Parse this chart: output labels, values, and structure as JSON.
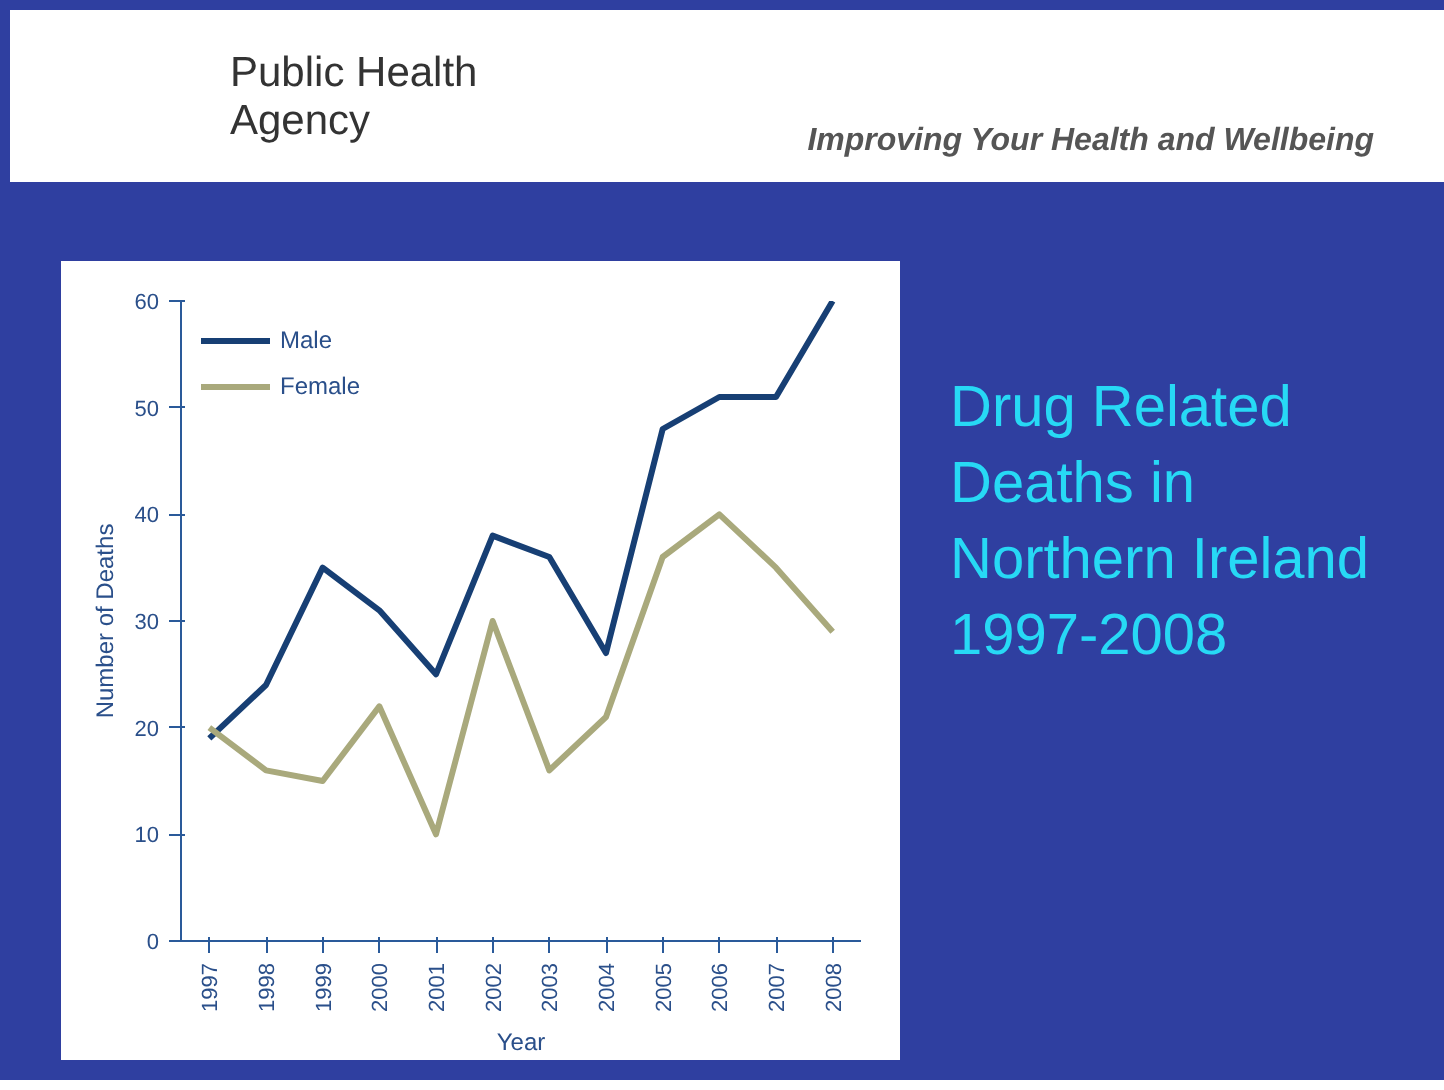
{
  "chart_data": {
    "type": "line",
    "title": "Drug Related Deaths in Northern Ireland 1997-2008",
    "xlabel": "Year",
    "ylabel": "Number of Deaths",
    "categories": [
      "1997",
      "1998",
      "1999",
      "2000",
      "2001",
      "2002",
      "2003",
      "2004",
      "2005",
      "2006",
      "2007",
      "2008"
    ],
    "series": [
      {
        "name": "Male",
        "color": "#173f74",
        "values": [
          19,
          24,
          35,
          31,
          25,
          38,
          36,
          27,
          48,
          51,
          51,
          60
        ]
      },
      {
        "name": "Female",
        "color": "#a9a97c",
        "values": [
          20,
          16,
          15,
          22,
          10,
          30,
          16,
          21,
          36,
          40,
          35,
          29
        ]
      }
    ],
    "ylim": [
      0,
      60
    ],
    "yticks": [
      0,
      10,
      20,
      30,
      40,
      50,
      60
    ],
    "legend": "top left",
    "grid": false,
    "marker": "none",
    "line_style": "solid",
    "annotations": [
      "Public Health Agency",
      "Improving Your Health and Wellbeing"
    ]
  }
}
